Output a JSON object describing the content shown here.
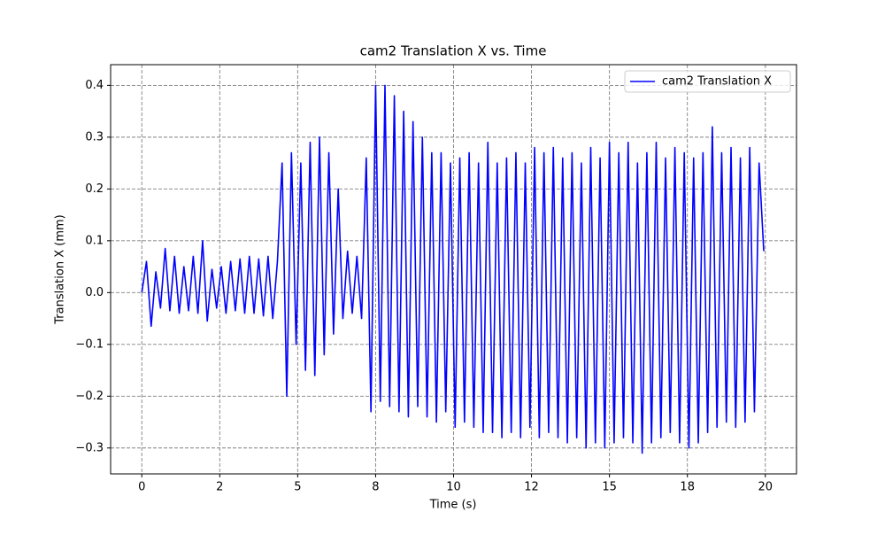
{
  "chart_data": {
    "type": "line",
    "title": "cam2 Translation X vs. Time",
    "xlabel": "Time (s)",
    "ylabel": "Translation X (mm)",
    "x": [
      0,
      0.15,
      0.3,
      0.45,
      0.6,
      0.75,
      0.9,
      1.05,
      1.2,
      1.35,
      1.5,
      1.65,
      1.8,
      1.95,
      2.1,
      2.25,
      2.4,
      2.55,
      2.7,
      2.85,
      3,
      3.15,
      3.3,
      3.45,
      3.6,
      3.75,
      3.9,
      4.05,
      4.2,
      4.35,
      4.5,
      4.65,
      4.8,
      4.95,
      5.1,
      5.25,
      5.4,
      5.55,
      5.7,
      5.85,
      6,
      6.15,
      6.3,
      6.45,
      6.6,
      6.75,
      6.9,
      7.05,
      7.2,
      7.35,
      7.5,
      7.65,
      7.8,
      7.95,
      8.1,
      8.25,
      8.4,
      8.55,
      8.7,
      8.85,
      9,
      9.15,
      9.3,
      9.45,
      9.6,
      9.75,
      9.9,
      10.05,
      10.2,
      10.35,
      10.5,
      10.65,
      10.8,
      10.95,
      11.1,
      11.25,
      11.4,
      11.55,
      11.7,
      11.85,
      12,
      12.15,
      12.3,
      12.45,
      12.6,
      12.75,
      12.9,
      13.05,
      13.2,
      13.35,
      13.5,
      13.65,
      13.8,
      13.95,
      14.1,
      14.25,
      14.4,
      14.55,
      14.7,
      14.85,
      15,
      15.15,
      15.3,
      15.45,
      15.6,
      15.75,
      15.9,
      16.05,
      16.2,
      16.35,
      16.5,
      16.65,
      16.8,
      16.95,
      17.1,
      17.25,
      17.4,
      17.55,
      17.7,
      17.85,
      18,
      18.15,
      18.3,
      18.45,
      18.6,
      18.75,
      18.9,
      19.05,
      19.2,
      19.35,
      19.5,
      19.65,
      19.8,
      19.95
    ],
    "series": [
      {
        "name": "cam2 Translation X",
        "color": "#0000ff",
        "values": [
          0.0,
          0.06,
          -0.065,
          0.04,
          -0.03,
          0.085,
          -0.035,
          0.07,
          -0.04,
          0.05,
          -0.035,
          0.07,
          -0.04,
          0.1,
          -0.055,
          0.045,
          -0.03,
          0.05,
          -0.04,
          0.06,
          -0.035,
          0.065,
          -0.04,
          0.07,
          -0.04,
          0.065,
          -0.045,
          0.07,
          -0.05,
          0.06,
          0.25,
          -0.2,
          0.27,
          -0.1,
          0.25,
          -0.15,
          0.29,
          -0.16,
          0.3,
          -0.12,
          0.27,
          -0.08,
          0.2,
          -0.05,
          0.08,
          -0.04,
          0.07,
          -0.05,
          0.26,
          -0.23,
          0.4,
          -0.21,
          0.4,
          -0.22,
          0.38,
          -0.23,
          0.35,
          -0.24,
          0.33,
          -0.22,
          0.3,
          -0.24,
          0.27,
          -0.25,
          0.27,
          -0.23,
          0.25,
          -0.26,
          0.26,
          -0.25,
          0.27,
          -0.26,
          0.25,
          -0.27,
          0.29,
          -0.27,
          0.25,
          -0.28,
          0.26,
          -0.27,
          0.27,
          -0.28,
          0.25,
          -0.26,
          0.28,
          -0.28,
          0.27,
          -0.27,
          0.28,
          -0.28,
          0.26,
          -0.29,
          0.27,
          -0.28,
          0.25,
          -0.3,
          0.28,
          -0.29,
          0.26,
          -0.3,
          0.29,
          -0.29,
          0.27,
          -0.28,
          0.29,
          -0.29,
          0.25,
          -0.31,
          0.27,
          -0.29,
          0.29,
          -0.28,
          0.26,
          -0.27,
          0.28,
          -0.29,
          0.27,
          -0.3,
          0.26,
          -0.29,
          0.27,
          -0.27,
          0.32,
          -0.26,
          0.27,
          -0.25,
          0.28,
          -0.26,
          0.26,
          -0.25,
          0.28,
          -0.23,
          0.25,
          0.08
        ]
      }
    ],
    "xlim": [
      -1,
      21
    ],
    "ylim": [
      -0.35,
      0.44
    ],
    "xticks": [
      0,
      {
        "value": 2.5,
        "label": "2"
      },
      5,
      {
        "value": 7.5,
        "label": "8"
      },
      10,
      {
        "value": 12.5,
        "label": "12"
      },
      15,
      {
        "value": 17.5,
        "label": "18"
      },
      20
    ],
    "yticks": [
      {
        "value": -0.3,
        "label": "−0.3"
      },
      {
        "value": -0.2,
        "label": "−0.2"
      },
      {
        "value": -0.1,
        "label": "−0.1"
      },
      {
        "value": 0,
        "label": "0.0"
      },
      0.1,
      0.2,
      0.3,
      0.4
    ],
    "grid": true,
    "legend": "upper right"
  }
}
